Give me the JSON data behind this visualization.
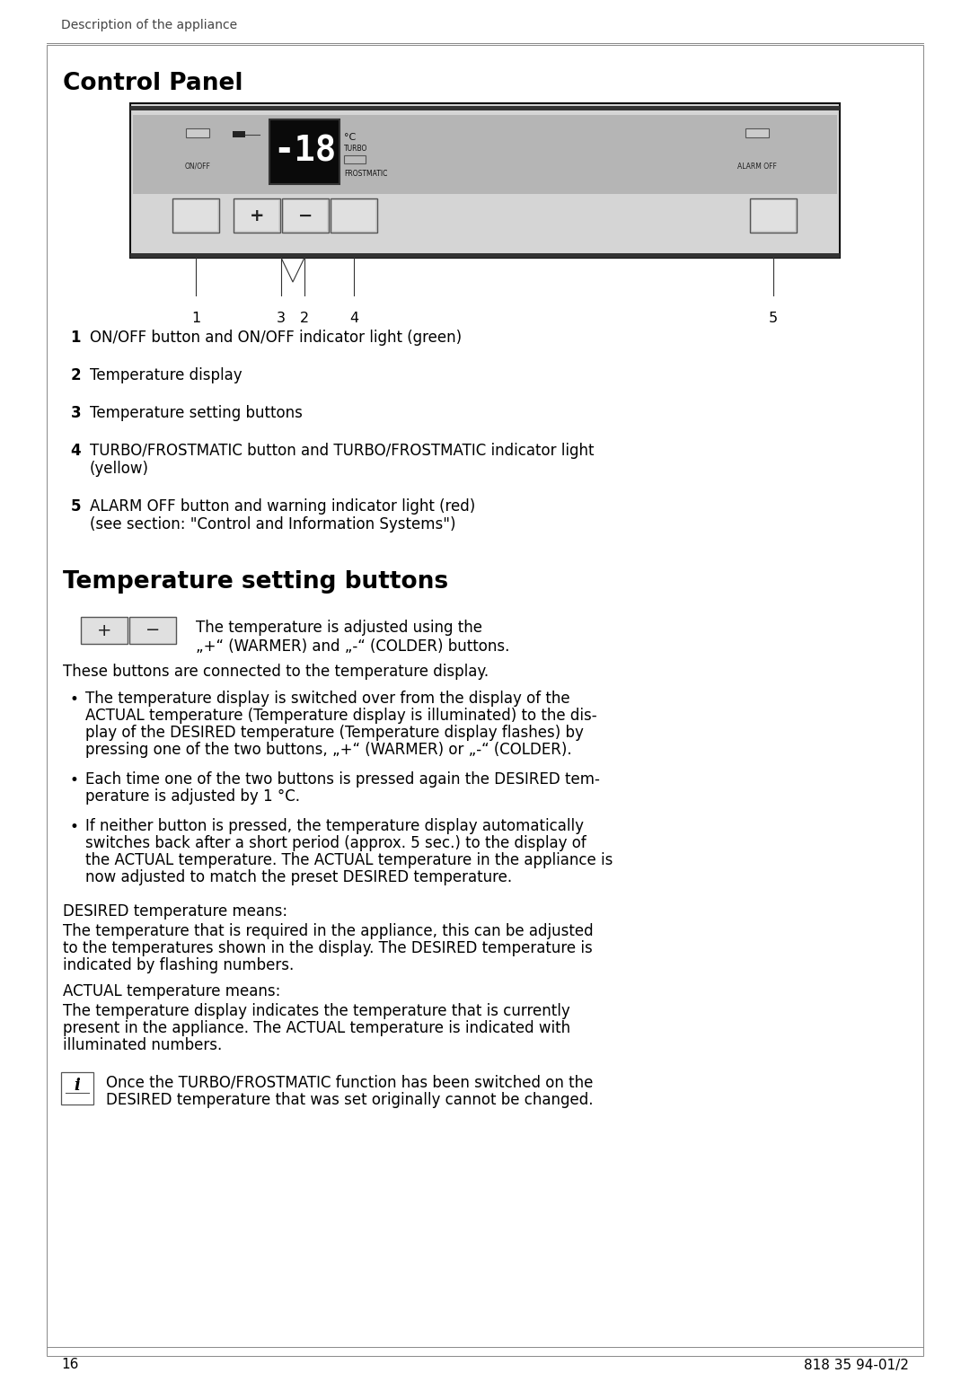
{
  "page_bg": "#ffffff",
  "header_text": "Description of the appliance",
  "section1_title": "Control Panel",
  "section2_title": "Temperature setting buttons",
  "body_color": "#000000",
  "footnote_left": "16",
  "footnote_right": "818 35 94-01/2",
  "numbered_items": [
    [
      "1",
      "ON/OFF button and ON/OFF indicator light (green)"
    ],
    [
      "2",
      "Temperature display"
    ],
    [
      "3",
      "Temperature setting buttons"
    ],
    [
      "4",
      "TURBO/FROSTMATIC button and TURBO/FROSTMATIC indicator light\n(yellow)"
    ],
    [
      "5",
      "ALARM OFF button and warning indicator light (red)\n(see section: \"Control and Information Systems\")"
    ]
  ],
  "temp_btn_text_line1": "The temperature is adjusted using the",
  "temp_btn_text_line2": "„+“ (WARMER) and „-“ (COLDER) buttons.",
  "connected_text": "These buttons are connected to the temperature display.",
  "bullet1_lines": [
    "The temperature display is switched over from the display of the",
    "ACTUAL temperature (Temperature display is illuminated) to the dis-",
    "play of the DESIRED temperature (Temperature display flashes) by",
    "pressing one of the two buttons, „+“ (WARMER) or „-“ (COLDER)."
  ],
  "bullet2_lines": [
    "Each time one of the two buttons is pressed again the DESIRED tem-",
    "perature is adjusted by 1 °C."
  ],
  "bullet3_lines": [
    "If neither button is pressed, the temperature display automatically",
    "switches back after a short period (approx. 5 sec.) to the display of",
    "the ACTUAL temperature. The ACTUAL temperature in the appliance is",
    "now adjusted to match the preset DESIRED temperature."
  ],
  "desired_label": "DESIRED temperature means:",
  "desired_lines": [
    "The temperature that is required in the appliance, this can be adjusted",
    "to the temperatures shown in the display. The DESIRED temperature is",
    "indicated by flashing numbers."
  ],
  "actual_label": "ACTUAL temperature means:",
  "actual_lines": [
    "The temperature display indicates the temperature that is currently",
    "present in the appliance. The ACTUAL temperature is indicated with",
    "illuminated numbers."
  ],
  "info_line1": "Once the TURBO/FROSTMATIC function has been switched on the",
  "info_line2": "DESIRED temperature that was set originally cannot be changed."
}
